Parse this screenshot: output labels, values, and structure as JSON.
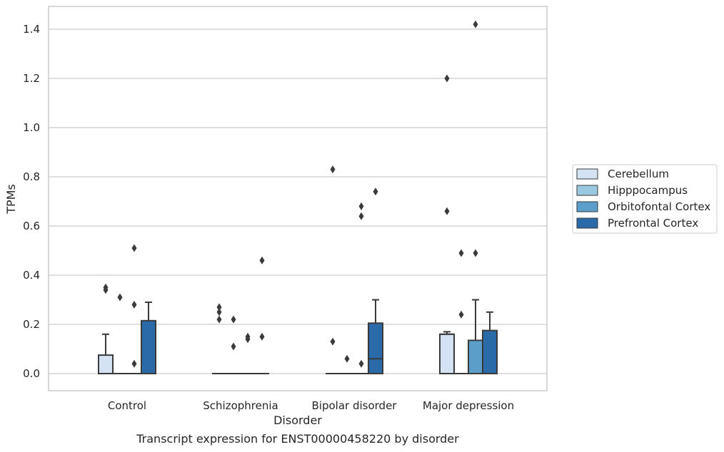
{
  "chart_data": {
    "type": "box",
    "xlabel": "Disorder",
    "ylabel": "TPMs",
    "ylim": [
      -0.07,
      1.49
    ],
    "yticks": [
      0.0,
      0.2,
      0.4,
      0.6,
      0.8,
      1.0,
      1.2,
      1.4
    ],
    "ytick_labels": [
      "0.0",
      "0.2",
      "0.4",
      "0.6",
      "0.8",
      "1.0",
      "1.2",
      "1.4"
    ],
    "grid": "horizontal",
    "legend_position": "right",
    "categories": [
      "Control",
      "Schizophrenia",
      "Bipolar disorder",
      "Major depression"
    ],
    "series": [
      {
        "name": "Cerebellum",
        "color": "#d3e3f3",
        "boxes": [
          {
            "q1": 0.0,
            "median": 0.0,
            "q3": 0.075,
            "whisker_low": 0.0,
            "whisker_high": 0.16,
            "outliers": [
              0.35,
              0.34
            ]
          },
          {
            "q1": 0.0,
            "median": 0.0,
            "q3": 0.0,
            "whisker_low": 0.0,
            "whisker_high": 0.0,
            "outliers": [
              0.27,
              0.25,
              0.22
            ]
          },
          {
            "q1": 0.0,
            "median": 0.0,
            "q3": 0.0,
            "whisker_low": 0.0,
            "whisker_high": 0.0,
            "outliers": [
              0.83,
              0.13
            ]
          },
          {
            "q1": 0.0,
            "median": 0.16,
            "q3": 0.16,
            "whisker_low": 0.0,
            "whisker_high": 0.17,
            "outliers": [
              1.2,
              0.66
            ]
          }
        ]
      },
      {
        "name": "Hipppocampus",
        "color": "#9ac8e0",
        "boxes": [
          {
            "q1": 0.0,
            "median": 0.0,
            "q3": 0.0,
            "whisker_low": 0.0,
            "whisker_high": 0.0,
            "outliers": [
              0.31
            ]
          },
          {
            "q1": 0.0,
            "median": 0.0,
            "q3": 0.0,
            "whisker_low": 0.0,
            "whisker_high": 0.0,
            "outliers": [
              0.22,
              0.11
            ]
          },
          {
            "q1": 0.0,
            "median": 0.0,
            "q3": 0.0,
            "whisker_low": 0.0,
            "whisker_high": 0.0,
            "outliers": [
              0.06
            ]
          },
          {
            "q1": 0.0,
            "median": 0.0,
            "q3": 0.0,
            "whisker_low": 0.0,
            "whisker_high": 0.0,
            "outliers": [
              0.49,
              0.24
            ]
          }
        ]
      },
      {
        "name": "Orbitofontal Cortex",
        "color": "#5a9ec9",
        "boxes": [
          {
            "q1": 0.0,
            "median": 0.0,
            "q3": 0.0,
            "whisker_low": 0.0,
            "whisker_high": 0.0,
            "outliers": [
              0.28,
              0.04,
              0.51
            ]
          },
          {
            "q1": 0.0,
            "median": 0.0,
            "q3": 0.0,
            "whisker_low": 0.0,
            "whisker_high": 0.0,
            "outliers": [
              0.15,
              0.14
            ]
          },
          {
            "q1": 0.0,
            "median": 0.0,
            "q3": 0.0,
            "whisker_low": 0.0,
            "whisker_high": 0.0,
            "outliers": [
              0.68,
              0.64,
              0.04
            ]
          },
          {
            "q1": 0.0,
            "median": 0.0,
            "q3": 0.135,
            "whisker_low": 0.0,
            "whisker_high": 0.3,
            "outliers": [
              1.42,
              0.49
            ]
          }
        ]
      },
      {
        "name": "Prefrontal Cortex",
        "color": "#2a6aa8",
        "boxes": [
          {
            "q1": 0.0,
            "median": 0.0,
            "q3": 0.215,
            "whisker_low": 0.0,
            "whisker_high": 0.29,
            "outliers": []
          },
          {
            "q1": 0.0,
            "median": 0.0,
            "q3": 0.0,
            "whisker_low": 0.0,
            "whisker_high": 0.0,
            "outliers": [
              0.46,
              0.15
            ]
          },
          {
            "q1": 0.0,
            "median": 0.06,
            "q3": 0.205,
            "whisker_low": 0.0,
            "whisker_high": 0.3,
            "outliers": [
              0.74
            ]
          },
          {
            "q1": 0.0,
            "median": 0.0,
            "q3": 0.175,
            "whisker_low": 0.0,
            "whisker_high": 0.25,
            "outliers": []
          }
        ]
      }
    ]
  },
  "caption": "Transcript expression for ENST00000458220 by disorder"
}
